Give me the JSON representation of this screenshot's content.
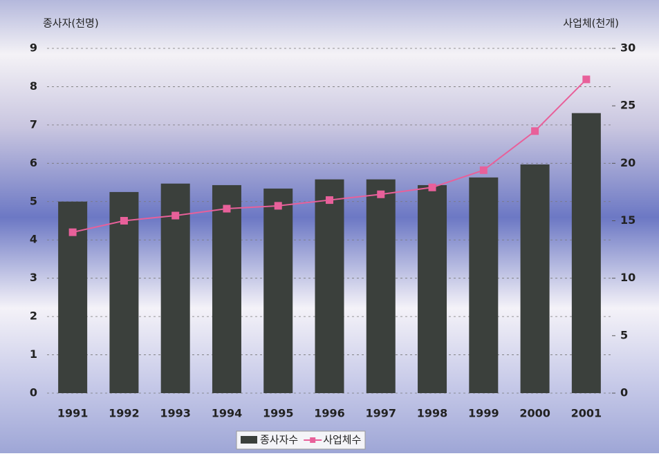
{
  "chart_data": {
    "type": "bar",
    "y_label": "종사자(천명)",
    "y2_label": "사업체(천개)",
    "categories": [
      "1991",
      "1992",
      "1993",
      "1994",
      "1995",
      "1996",
      "1997",
      "1998",
      "1999",
      "2000",
      "2001"
    ],
    "series": [
      {
        "name": "종사자수",
        "type": "bar",
        "color": "#3b403c",
        "values": [
          5.0,
          5.25,
          5.47,
          5.43,
          5.34,
          5.58,
          5.58,
          5.43,
          5.63,
          5.97,
          7.31
        ]
      },
      {
        "name": "사업체수",
        "type": "line",
        "axis": "y2",
        "color": "#e8609a",
        "values": [
          14.0,
          15.0,
          15.45,
          16.05,
          16.3,
          16.8,
          17.3,
          17.9,
          19.4,
          22.8,
          27.3
        ]
      }
    ],
    "ylim": [
      0,
      9
    ],
    "yticks": [
      0,
      1,
      2,
      3,
      4,
      5,
      6,
      7,
      8,
      9
    ],
    "y2lim": [
      0,
      30
    ],
    "y2ticks": [
      0,
      5,
      10,
      15,
      20,
      25,
      30
    ],
    "grid": true
  }
}
